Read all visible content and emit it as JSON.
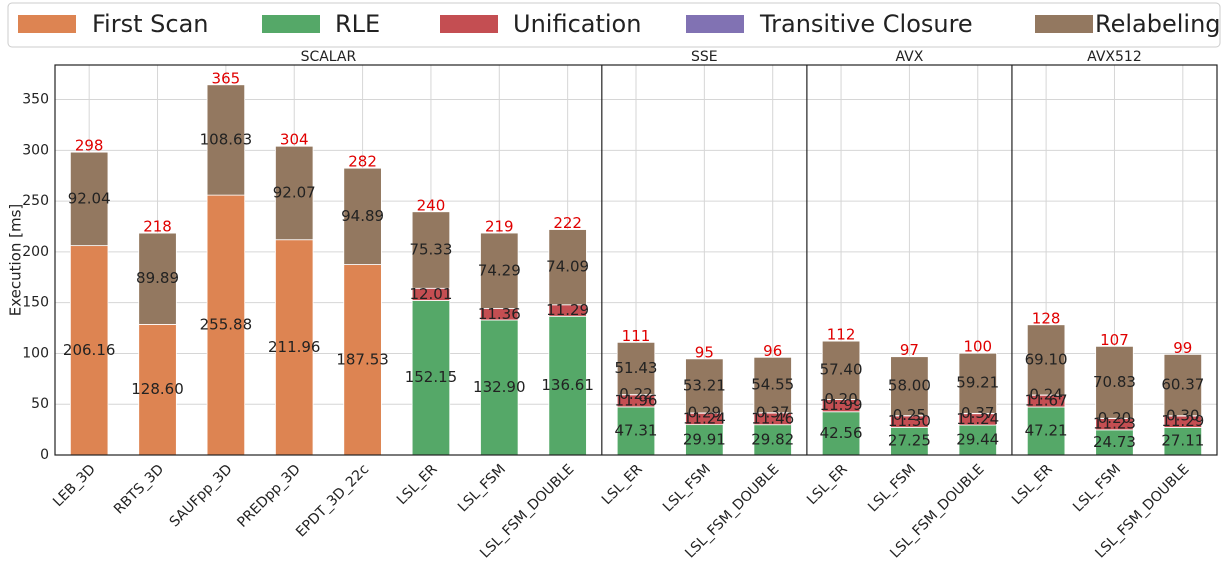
{
  "chart_data": {
    "type": "bar",
    "stacked": true,
    "ylabel": "Execution [ms]",
    "ylim": [
      0,
      384
    ],
    "yticks": [
      0,
      50,
      100,
      150,
      200,
      250,
      300,
      350
    ],
    "grid": true,
    "legend": "top",
    "series": [
      {
        "name": "First Scan",
        "color": "#dd8452"
      },
      {
        "name": "RLE",
        "color": "#55a868"
      },
      {
        "name": "Unification",
        "color": "#c44e52"
      },
      {
        "name": "Transitive Closure",
        "color": "#8172b3"
      },
      {
        "name": "Relabeling",
        "color": "#937860"
      }
    ],
    "panels": [
      {
        "title": "SCALAR",
        "categories": [
          "LEB_3D",
          "RBTS_3D",
          "SAUFpp_3D",
          "PREDpp_3D",
          "EPDT_3D_22c",
          "LSL_ER",
          "LSL_FSM",
          "LSL_FSM_DOUBLE"
        ],
        "totals": [
          298,
          218,
          365,
          304,
          282,
          240,
          219,
          222
        ],
        "series": [
          {
            "values": [
              206.16,
              128.6,
              255.88,
              211.96,
              187.53,
              null,
              null,
              null
            ],
            "value_labels": [
              "206.16",
              "128.60",
              "255.88",
              "211.96",
              "187.53",
              null,
              null,
              null
            ]
          },
          {
            "values": [
              null,
              null,
              null,
              null,
              null,
              152.15,
              132.9,
              136.61
            ],
            "value_labels": [
              null,
              null,
              null,
              null,
              null,
              "152.15",
              "132.90",
              "136.61"
            ]
          },
          {
            "values": [
              null,
              null,
              null,
              null,
              null,
              12.01,
              11.36,
              11.29
            ],
            "value_labels": [
              null,
              null,
              null,
              null,
              null,
              "12.01",
              "11.36",
              "11.29"
            ]
          },
          {
            "values": [
              null,
              null,
              null,
              null,
              null,
              null,
              null,
              null
            ],
            "value_labels": [
              null,
              null,
              null,
              null,
              null,
              null,
              null,
              null
            ]
          },
          {
            "values": [
              92.04,
              89.89,
              108.63,
              92.07,
              94.89,
              75.33,
              74.29,
              74.09
            ],
            "value_labels": [
              "92.04",
              "89.89",
              "108.63",
              "92.07",
              "94.89",
              "75.33",
              "74.29",
              "74.09"
            ]
          }
        ]
      },
      {
        "title": "SSE",
        "categories": [
          "LSL_ER",
          "LSL_FSM",
          "LSL_FSM_DOUBLE"
        ],
        "totals": [
          111,
          95,
          96
        ],
        "series": [
          {
            "values": [
              null,
              null,
              null
            ],
            "value_labels": [
              null,
              null,
              null
            ]
          },
          {
            "values": [
              47.31,
              29.91,
              29.82
            ],
            "value_labels": [
              "47.31",
              "29.91",
              "29.82"
            ]
          },
          {
            "values": [
              11.96,
              11.24,
              11.46
            ],
            "value_labels": [
              "11.96",
              "11.24",
              "11.46"
            ]
          },
          {
            "values": [
              0.22,
              0.29,
              0.37
            ],
            "value_labels": [
              "0.22",
              "0.29",
              "0.37"
            ]
          },
          {
            "values": [
              51.43,
              53.21,
              54.55
            ],
            "value_labels": [
              "51.43",
              "53.21",
              "54.55"
            ]
          }
        ]
      },
      {
        "title": "AVX",
        "categories": [
          "LSL_ER",
          "LSL_FSM",
          "LSL_FSM_DOUBLE"
        ],
        "totals": [
          112,
          97,
          100
        ],
        "series": [
          {
            "values": [
              null,
              null,
              null
            ],
            "value_labels": [
              null,
              null,
              null
            ]
          },
          {
            "values": [
              42.56,
              27.25,
              29.44
            ],
            "value_labels": [
              "42.56",
              "27.25",
              "29.44"
            ]
          },
          {
            "values": [
              11.99,
              11.3,
              11.24
            ],
            "value_labels": [
              "11.99",
              "11.30",
              "11.24"
            ]
          },
          {
            "values": [
              0.2,
              0.25,
              0.37
            ],
            "value_labels": [
              "0.20",
              "0.25",
              "0.37"
            ]
          },
          {
            "values": [
              57.4,
              58.0,
              59.21
            ],
            "value_labels": [
              "57.40",
              "58.00",
              "59.21"
            ]
          }
        ]
      },
      {
        "title": "AVX512",
        "categories": [
          "LSL_ER",
          "LSL_FSM",
          "LSL_FSM_DOUBLE"
        ],
        "totals": [
          128,
          107,
          99
        ],
        "series": [
          {
            "values": [
              null,
              null,
              null
            ],
            "value_labels": [
              null,
              null,
              null
            ]
          },
          {
            "values": [
              47.21,
              24.73,
              27.11
            ],
            "value_labels": [
              "47.21",
              "24.73",
              "27.11"
            ]
          },
          {
            "values": [
              11.67,
              11.23,
              11.29
            ],
            "value_labels": [
              "11.67",
              "11.23",
              "11.29"
            ]
          },
          {
            "values": [
              0.24,
              0.2,
              0.3
            ],
            "value_labels": [
              "0.24",
              "0.20",
              "0.30"
            ]
          },
          {
            "values": [
              69.1,
              70.83,
              60.37
            ],
            "value_labels": [
              "69.10",
              "70.83",
              "60.37"
            ]
          }
        ]
      }
    ]
  }
}
